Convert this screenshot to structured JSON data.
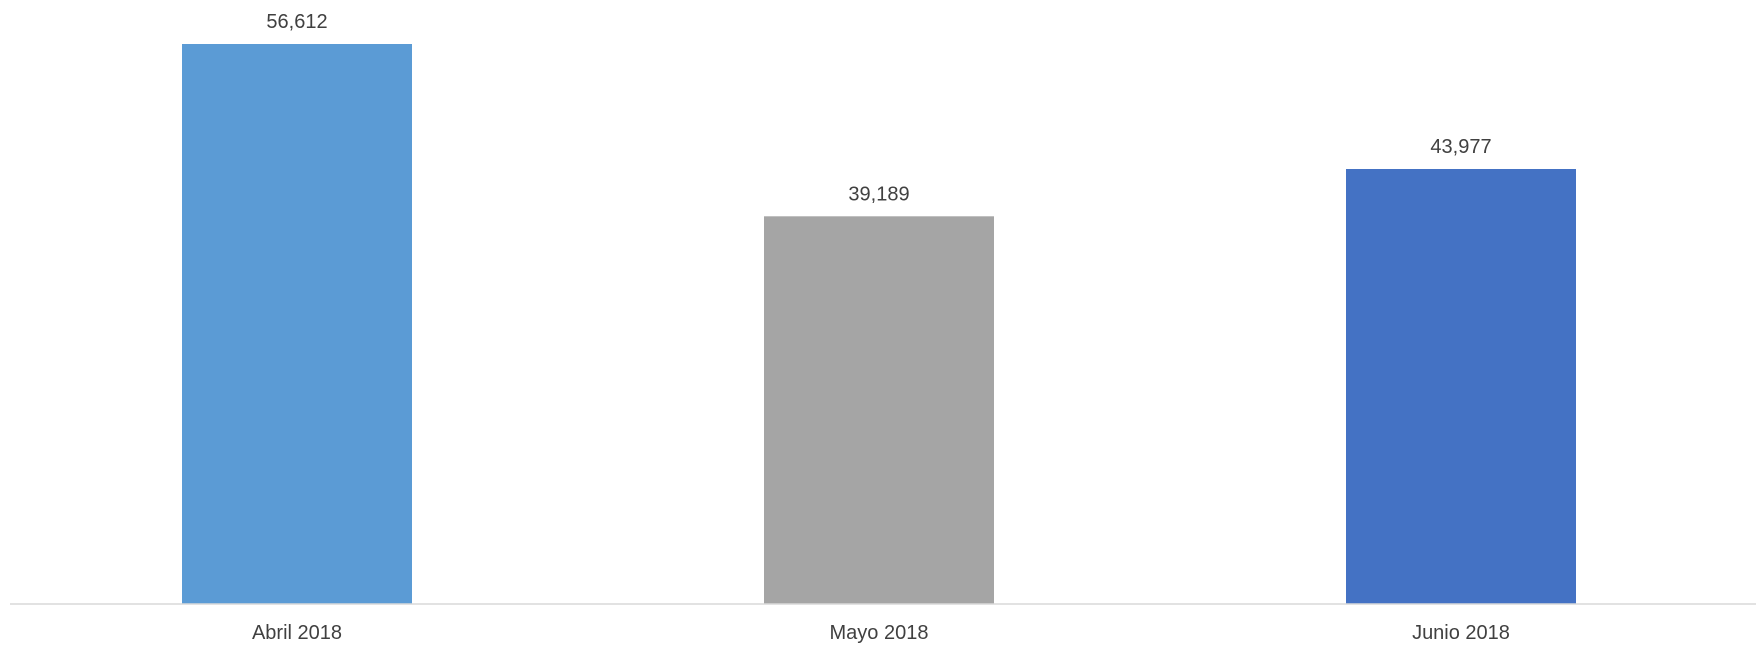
{
  "chart_data": {
    "type": "bar",
    "categories": [
      "Abril 2018",
      "Mayo 2018",
      "Junio 2018"
    ],
    "values": [
      56612,
      39189,
      43977
    ],
    "value_labels": [
      "56,612",
      "39,189",
      "43,977"
    ],
    "bar_colors": [
      "#5B9BD5",
      "#A5A5A5",
      "#4472C4"
    ],
    "axis_color": "#D9D9D9",
    "text_color": "#404040",
    "ylim": [
      0,
      60000
    ],
    "grid": false,
    "legend": "none"
  }
}
